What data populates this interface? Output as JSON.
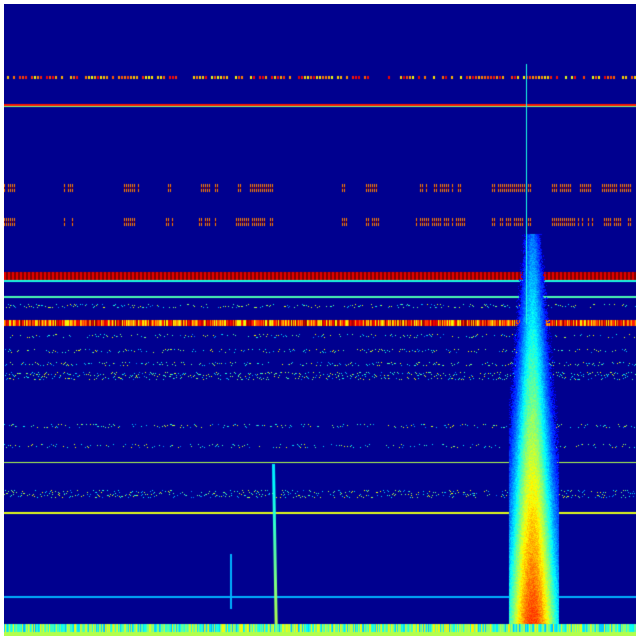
{
  "image": {
    "kind": "spectrogram",
    "colormap": "jet",
    "colors": {
      "background": "#00008f",
      "low": "#0000ff",
      "mid": "#00ffff",
      "high": "#ffff00",
      "peak": "#ff0000"
    }
  }
}
